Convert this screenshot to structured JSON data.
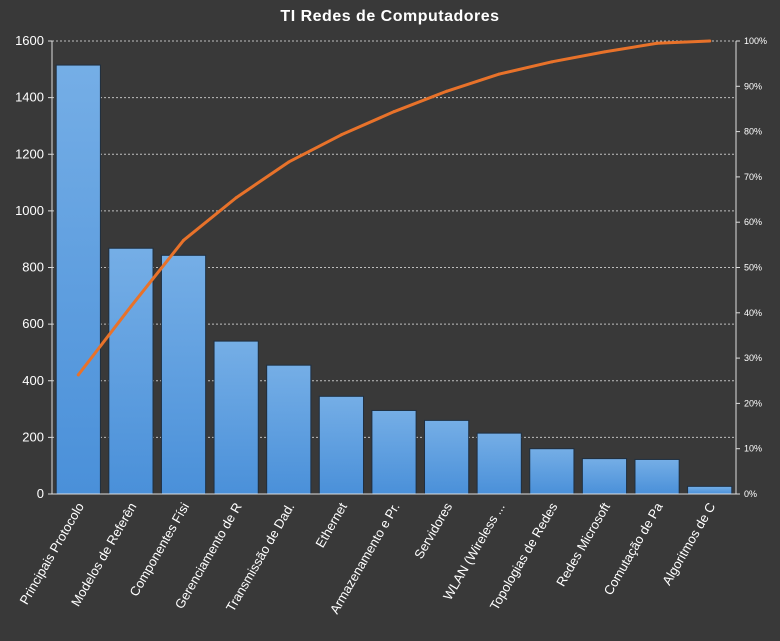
{
  "chart_data": {
    "type": "bar",
    "title": "TI Redes de Computadores",
    "categories": [
      "Principais Protocolo",
      "Modelos de Referên",
      "Componentes Físi",
      "Gerenciamento de R",
      "Transmissão de Dad.",
      "Ethernet",
      "Armazenamento e Pr.",
      "Servidores",
      "WLAN (Wireless ...",
      "Topologias de Redes",
      "Redes Microsoft",
      "Comutação de Pa",
      "Algoritmos de C"
    ],
    "series": [
      {
        "type": "bar",
        "values": [
          1515,
          868,
          843,
          540,
          455,
          345,
          295,
          260,
          215,
          160,
          125,
          122,
          27
        ]
      },
      {
        "type": "line",
        "axis": "right",
        "values": [
          26.3,
          41.4,
          56.0,
          65.4,
          73.3,
          79.3,
          84.4,
          88.9,
          92.7,
          95.4,
          97.6,
          99.5,
          100
        ]
      }
    ],
    "y_left": {
      "min": 0,
      "max": 1600,
      "ticks": [
        0,
        200,
        400,
        600,
        800,
        1000,
        1200,
        1400,
        1600
      ]
    },
    "y_right": {
      "min": 0,
      "max": 100,
      "ticks": [
        "0%",
        "10%",
        "20%",
        "30%",
        "40%",
        "50%",
        "60%",
        "70%",
        "80%",
        "90%",
        "100%"
      ]
    },
    "grid": true,
    "colors": {
      "bar": "#4a90d9",
      "bar_top": "#75aee6",
      "line": "#e8722a",
      "grid": "#bfbfbf",
      "background": "#393939"
    }
  }
}
